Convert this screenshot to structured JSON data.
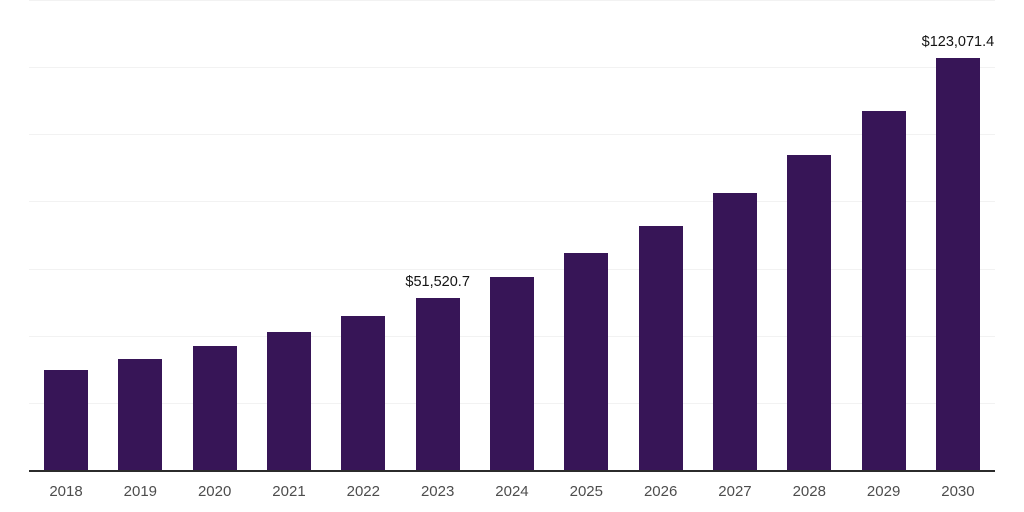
{
  "chart_data": {
    "type": "bar",
    "title": "",
    "xlabel": "",
    "ylabel": "",
    "categories": [
      "2018",
      "2019",
      "2020",
      "2021",
      "2022",
      "2023",
      "2024",
      "2025",
      "2026",
      "2027",
      "2028",
      "2029",
      "2030"
    ],
    "values": [
      30100,
      33300,
      37100,
      41500,
      46200,
      51520.7,
      57800,
      64900,
      73000,
      82900,
      94000,
      107200,
      123071.4
    ],
    "bar_labels": [
      "",
      "",
      "",
      "",
      "",
      "$51,520.7",
      "",
      "",
      "",
      "",
      "",
      "",
      "$123,071.4"
    ],
    "labeled_points": [
      {
        "category": "2023",
        "label": "$51,520.7",
        "value": 51520.7
      },
      {
        "category": "2030",
        "label": "$123,071.4",
        "value": 123071.4
      }
    ],
    "ylim": [
      0,
      140000
    ],
    "ytick_step": 20000,
    "grid": "horizontal",
    "legend": "none",
    "colors": {
      "bar": "#371557",
      "gridline": "#f2f2f2",
      "axis_line": "#2b2b2b",
      "x_tick_label": "#4d4d4d",
      "data_label": "#141414",
      "background": "#ffffff"
    }
  }
}
